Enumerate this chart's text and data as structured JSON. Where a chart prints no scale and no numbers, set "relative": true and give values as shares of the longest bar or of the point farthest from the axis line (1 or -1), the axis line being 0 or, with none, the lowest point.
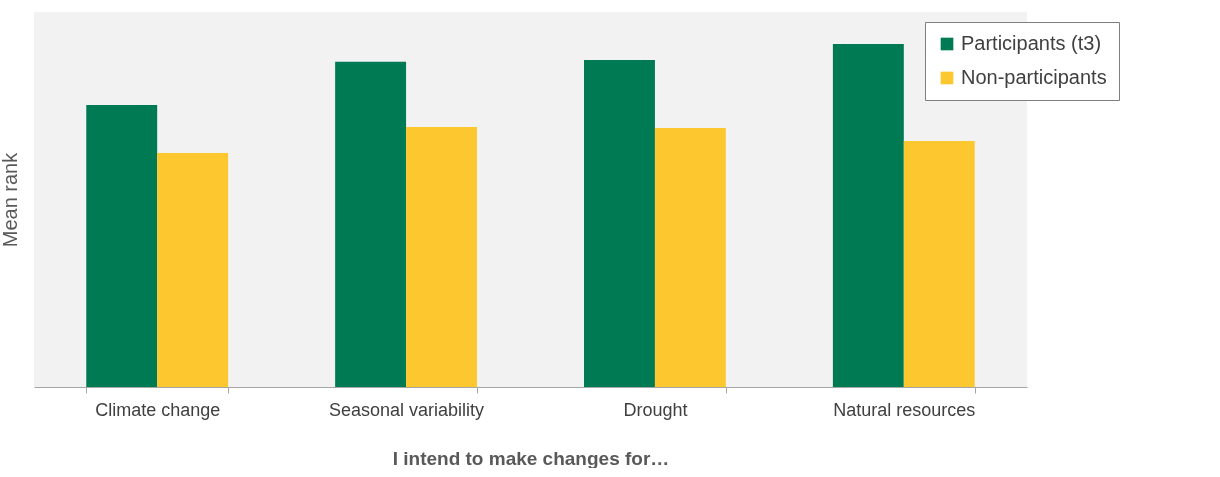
{
  "chart_data": {
    "type": "bar",
    "relative": true,
    "ylabel": "Mean rank",
    "xlabel": "I intend to make changes for…",
    "categories": [
      "Climate change",
      "Seasonal variability",
      "Drought",
      "Natural resources"
    ],
    "series": [
      {
        "name": "Participants (t3)",
        "color": "#007a53",
        "values": [
          0.822,
          0.948,
          0.953,
          1
        ]
      },
      {
        "name": "Non-participants",
        "color": "#fdc82f",
        "values": [
          0.682,
          0.758,
          0.755,
          0.717
        ]
      }
    ],
    "legend": "top right",
    "grid": false
  }
}
